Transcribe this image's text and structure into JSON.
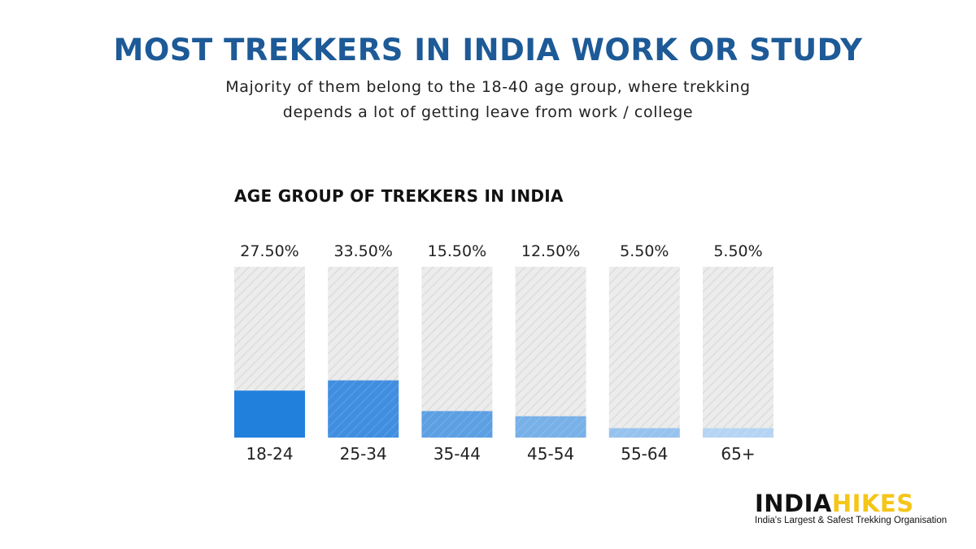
{
  "header": {
    "title": "MOST TREKKERS IN INDIA WORK OR STUDY",
    "subtitle_line1": "Majority of them belong to the 18-40 age group, where trekking",
    "subtitle_line2": "depends a lot of getting leave from work / college"
  },
  "chart_data": {
    "type": "bar",
    "title": "AGE GROUP OF TREKKERS IN INDIA",
    "xlabel": "",
    "ylabel": "",
    "categories": [
      "18-24",
      "25-34",
      "35-44",
      "45-54",
      "55-64",
      "65+"
    ],
    "values": [
      27.5,
      33.5,
      15.5,
      12.5,
      5.5,
      5.5
    ],
    "value_labels": [
      "27.50%",
      "33.50%",
      "15.50%",
      "12.50%",
      "5.50%",
      "5.50%"
    ],
    "ylim": [
      0,
      100
    ],
    "grid": false,
    "legend": "none",
    "background_track": "hatched light grey",
    "bar_colors": [
      "#2280dd",
      "#3f8ee0",
      "#5c9fe3",
      "#78b0e8",
      "#96c2ee",
      "#b5d4f4"
    ]
  },
  "brand": {
    "logo_part1": "INDIA",
    "logo_part2": "HIKES",
    "tagline": "India's Largest & Safest Trekking Organisation",
    "logo_colors": {
      "dark": "#111111",
      "accent": "#f5c518"
    }
  }
}
